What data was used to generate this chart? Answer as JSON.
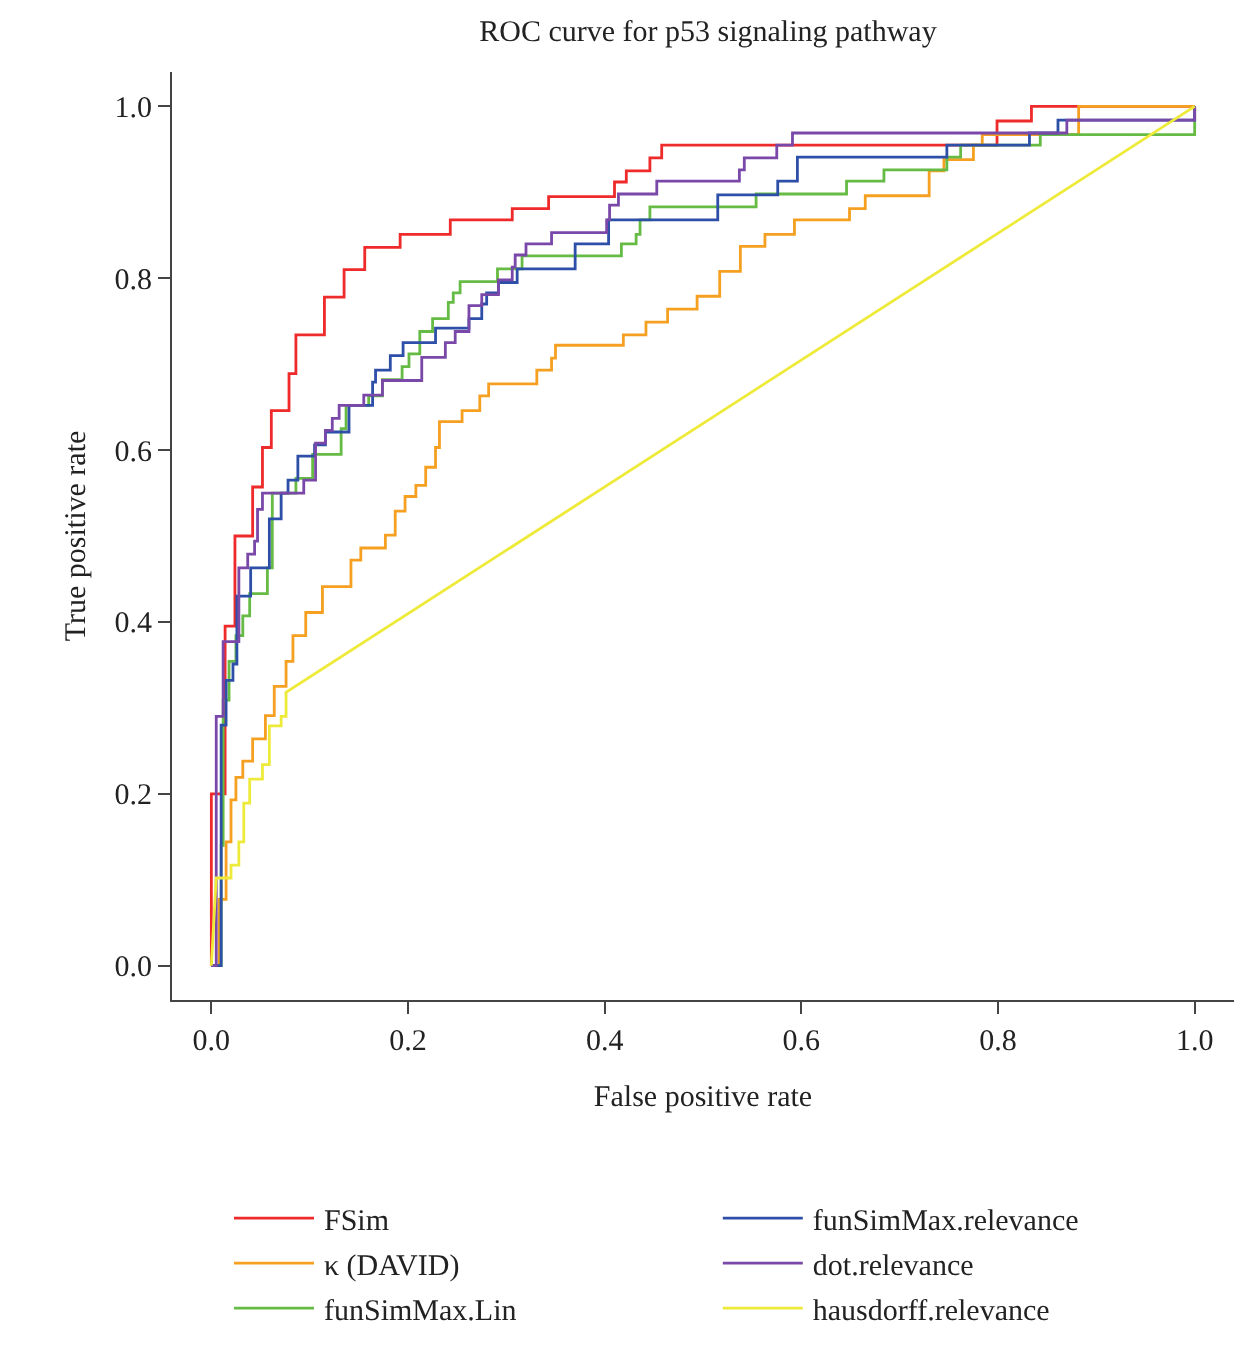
{
  "chart_data": {
    "type": "step",
    "title": "ROC curve for p53 signaling pathway",
    "xlabel": "False positive rate",
    "ylabel": "True positive rate",
    "xlim": [
      -0.04,
      1.04
    ],
    "ylim": [
      -0.04,
      1.04
    ],
    "xticks": [
      {
        "value": 0,
        "label": "0.0"
      },
      0.2,
      0.4,
      0.6,
      0.8,
      {
        "value": 1,
        "label": "1.0"
      }
    ],
    "yticks": [
      {
        "value": 0,
        "label": "0.0"
      },
      0.2,
      0.4,
      0.6,
      0.8,
      {
        "value": 1,
        "label": "1.0"
      }
    ],
    "grid": false,
    "legend": "bottom",
    "marker": "none",
    "line_style": "solid",
    "series": [
      {
        "name": "FSim",
        "color": "#ee2a2a",
        "x": [
          0,
          0,
          0.014,
          0.024,
          0.042,
          0.052,
          0.061,
          0.079,
          0.086,
          0.115,
          0.135,
          0.156,
          0.192,
          0.243,
          0.306,
          0.343,
          0.41,
          0.422,
          0.446,
          0.458,
          0.799,
          0.834,
          1
        ],
        "values": [
          0,
          0.2,
          0.395,
          0.5,
          0.557,
          0.603,
          0.646,
          0.689,
          0.734,
          0.778,
          0.81,
          0.836,
          0.851,
          0.868,
          0.881,
          0.895,
          0.912,
          0.925,
          0.94,
          0.955,
          0.983,
          1,
          1
        ]
      },
      {
        "name": "κ (DAVID)",
        "color": "#f5a020",
        "x": [
          0,
          0.008,
          0.015,
          0.02,
          0.025,
          0.032,
          0.042,
          0.055,
          0.064,
          0.076,
          0.083,
          0.096,
          0.113,
          0.142,
          0.152,
          0.177,
          0.187,
          0.197,
          0.208,
          0.218,
          0.228,
          0.232,
          0.255,
          0.273,
          0.282,
          0.331,
          0.346,
          0.35,
          0.419,
          0.442,
          0.464,
          0.494,
          0.517,
          0.538,
          0.563,
          0.593,
          0.649,
          0.665,
          0.73,
          0.745,
          0.775,
          0.784,
          0.882,
          1
        ],
        "values": [
          0,
          0.077,
          0.144,
          0.193,
          0.219,
          0.238,
          0.264,
          0.291,
          0.325,
          0.354,
          0.384,
          0.411,
          0.441,
          0.472,
          0.486,
          0.501,
          0.529,
          0.546,
          0.559,
          0.58,
          0.603,
          0.633,
          0.646,
          0.663,
          0.677,
          0.693,
          0.707,
          0.722,
          0.734,
          0.749,
          0.764,
          0.779,
          0.808,
          0.837,
          0.851,
          0.868,
          0.881,
          0.896,
          0.925,
          0.938,
          0.955,
          0.967,
          1,
          1
        ]
      },
      {
        "name": "funSimMax.Lin",
        "color": "#66bb44",
        "x": [
          0,
          0.01,
          0.012,
          0.018,
          0.025,
          0.032,
          0.039,
          0.057,
          0.062,
          0.086,
          0.103,
          0.132,
          0.137,
          0.16,
          0.174,
          0.194,
          0.201,
          0.212,
          0.225,
          0.241,
          0.246,
          0.253,
          0.291,
          0.316,
          0.417,
          0.432,
          0.436,
          0.446,
          0.554,
          0.646,
          0.684,
          0.748,
          0.762,
          0.843,
          1
        ],
        "values": [
          0,
          0.14,
          0.309,
          0.354,
          0.384,
          0.407,
          0.433,
          0.463,
          0.55,
          0.567,
          0.595,
          0.625,
          0.652,
          0.663,
          0.682,
          0.697,
          0.712,
          0.738,
          0.753,
          0.772,
          0.783,
          0.796,
          0.811,
          0.826,
          0.84,
          0.851,
          0.868,
          0.883,
          0.898,
          0.913,
          0.926,
          0.941,
          0.955,
          0.967,
          1
        ]
      },
      {
        "name": "funSimMax.relevance",
        "color": "#2e4fa8",
        "x": [
          0,
          0.01,
          0.01,
          0.015,
          0.022,
          0.026,
          0.04,
          0.059,
          0.071,
          0.078,
          0.088,
          0.105,
          0.116,
          0.14,
          0.164,
          0.167,
          0.182,
          0.195,
          0.228,
          0.262,
          0.275,
          0.28,
          0.292,
          0.311,
          0.37,
          0.404,
          0.515,
          0.576,
          0.596,
          0.748,
          0.832,
          0.861,
          1
        ],
        "values": [
          0,
          0.14,
          0.28,
          0.332,
          0.351,
          0.43,
          0.463,
          0.52,
          0.55,
          0.565,
          0.593,
          0.606,
          0.621,
          0.652,
          0.679,
          0.693,
          0.71,
          0.725,
          0.742,
          0.753,
          0.77,
          0.783,
          0.795,
          0.811,
          0.84,
          0.868,
          0.897,
          0.913,
          0.941,
          0.955,
          0.969,
          0.984,
          1
        ]
      },
      {
        "name": "dot.relevance",
        "color": "#7a48a8",
        "x": [
          0,
          0.005,
          0.005,
          0.012,
          0.028,
          0.037,
          0.044,
          0.047,
          0.052,
          0.094,
          0.106,
          0.116,
          0.123,
          0.13,
          0.155,
          0.174,
          0.214,
          0.238,
          0.248,
          0.262,
          0.275,
          0.292,
          0.306,
          0.309,
          0.32,
          0.346,
          0.402,
          0.405,
          0.414,
          0.453,
          0.537,
          0.542,
          0.575,
          0.591,
          0.87,
          1
        ],
        "values": [
          0,
          0.18,
          0.29,
          0.377,
          0.463,
          0.479,
          0.494,
          0.531,
          0.55,
          0.565,
          0.608,
          0.623,
          0.637,
          0.652,
          0.664,
          0.681,
          0.708,
          0.725,
          0.738,
          0.768,
          0.781,
          0.798,
          0.813,
          0.827,
          0.84,
          0.853,
          0.868,
          0.885,
          0.898,
          0.913,
          0.926,
          0.94,
          0.955,
          0.969,
          0.984,
          1
        ]
      },
      {
        "name": "hausdorff.relevance",
        "color": "#eeea3a",
        "type": "line",
        "x": [
          0,
          0.005,
          0.02,
          0.02,
          0.028,
          0.028,
          0.033,
          0.033,
          0.039,
          0.039,
          0.052,
          0.052,
          0.059,
          0.059,
          0.071,
          0.071,
          0.076,
          0.076,
          1
        ],
        "values": [
          0,
          0.102,
          0.102,
          0.117,
          0.117,
          0.144,
          0.144,
          0.189,
          0.189,
          0.217,
          0.217,
          0.234,
          0.234,
          0.279,
          0.279,
          0.29,
          0.29,
          0.318,
          1
        ]
      }
    ]
  }
}
